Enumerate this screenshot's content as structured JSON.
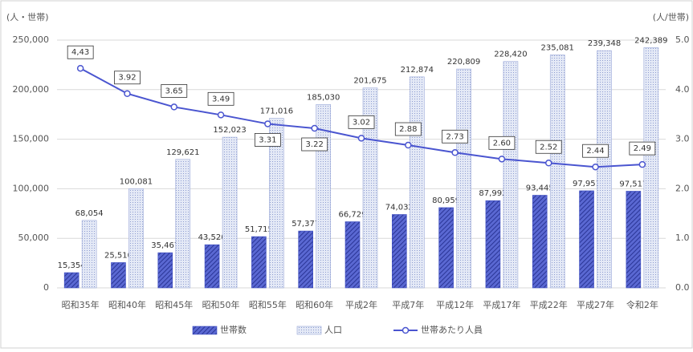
{
  "chart_data": {
    "type": "bar",
    "y_label": "(人・世帯)",
    "y2_label": "(人/世帯)",
    "categories": [
      "昭和35年",
      "昭和40年",
      "昭和45年",
      "昭和50年",
      "昭和55年",
      "昭和60年",
      "平成2年",
      "平成7年",
      "平成12年",
      "平成17年",
      "平成22年",
      "平成27年",
      "令和2年"
    ],
    "series": [
      {
        "name": "世帯数",
        "type": "bar",
        "color": "#3b4cc0",
        "values": [
          15354,
          25510,
          35467,
          43520,
          51715,
          57377,
          66729,
          74032,
          80959,
          87992,
          93445,
          97951,
          97517
        ],
        "value_labels": [
          "15,354",
          "25,510",
          "35,467",
          "43,520",
          "51,715",
          "57,377",
          "66,729",
          "74,032",
          "80,959",
          "87,992",
          "93,445",
          "97,951",
          "97,517"
        ]
      },
      {
        "name": "人口",
        "type": "bar",
        "color": "#c5cfea",
        "values": [
          68054,
          100081,
          129621,
          152023,
          171016,
          185030,
          201675,
          212874,
          220809,
          228420,
          235081,
          239348,
          242389
        ],
        "value_labels": [
          "68,054",
          "100,081",
          "129,621",
          "152,023",
          "171,016",
          "185,030",
          "201,675",
          "212,874",
          "220,809",
          "228,420",
          "235,081",
          "239,348",
          "242,389"
        ]
      },
      {
        "name": "世帯あたり人員",
        "type": "line",
        "axis": "y2",
        "color": "#4a55d0",
        "values": [
          4.43,
          3.92,
          3.65,
          3.49,
          3.31,
          3.22,
          3.02,
          2.88,
          2.73,
          2.6,
          2.52,
          2.44,
          2.49
        ],
        "value_labels": [
          "4,43",
          "3.92",
          "3.65",
          "3.49",
          "3.31",
          "3.22",
          "3.02",
          "2.88",
          "2.73",
          "2.60",
          "2.52",
          "2.44",
          "2.49"
        ]
      }
    ],
    "ylim": [
      0,
      250000
    ],
    "yticks": [
      0,
      {
        "value": 50000,
        "label": "50,000"
      },
      {
        "value": 100000,
        "label": "100,000"
      },
      {
        "value": 150000,
        "label": "150,000"
      },
      {
        "value": 200000,
        "label": "200,000"
      },
      {
        "value": 250000,
        "label": "250,000"
      }
    ],
    "y2lim": [
      0,
      5
    ],
    "y2ticks": [
      {
        "value": 0,
        "label": "0.0"
      },
      {
        "value": 1,
        "label": "1.0"
      },
      {
        "value": 2,
        "label": "2.0"
      },
      {
        "value": 3,
        "label": "3.0"
      },
      {
        "value": 4,
        "label": "4.0"
      },
      {
        "value": 5,
        "label": "5.0"
      }
    ],
    "legend": "bottom"
  }
}
